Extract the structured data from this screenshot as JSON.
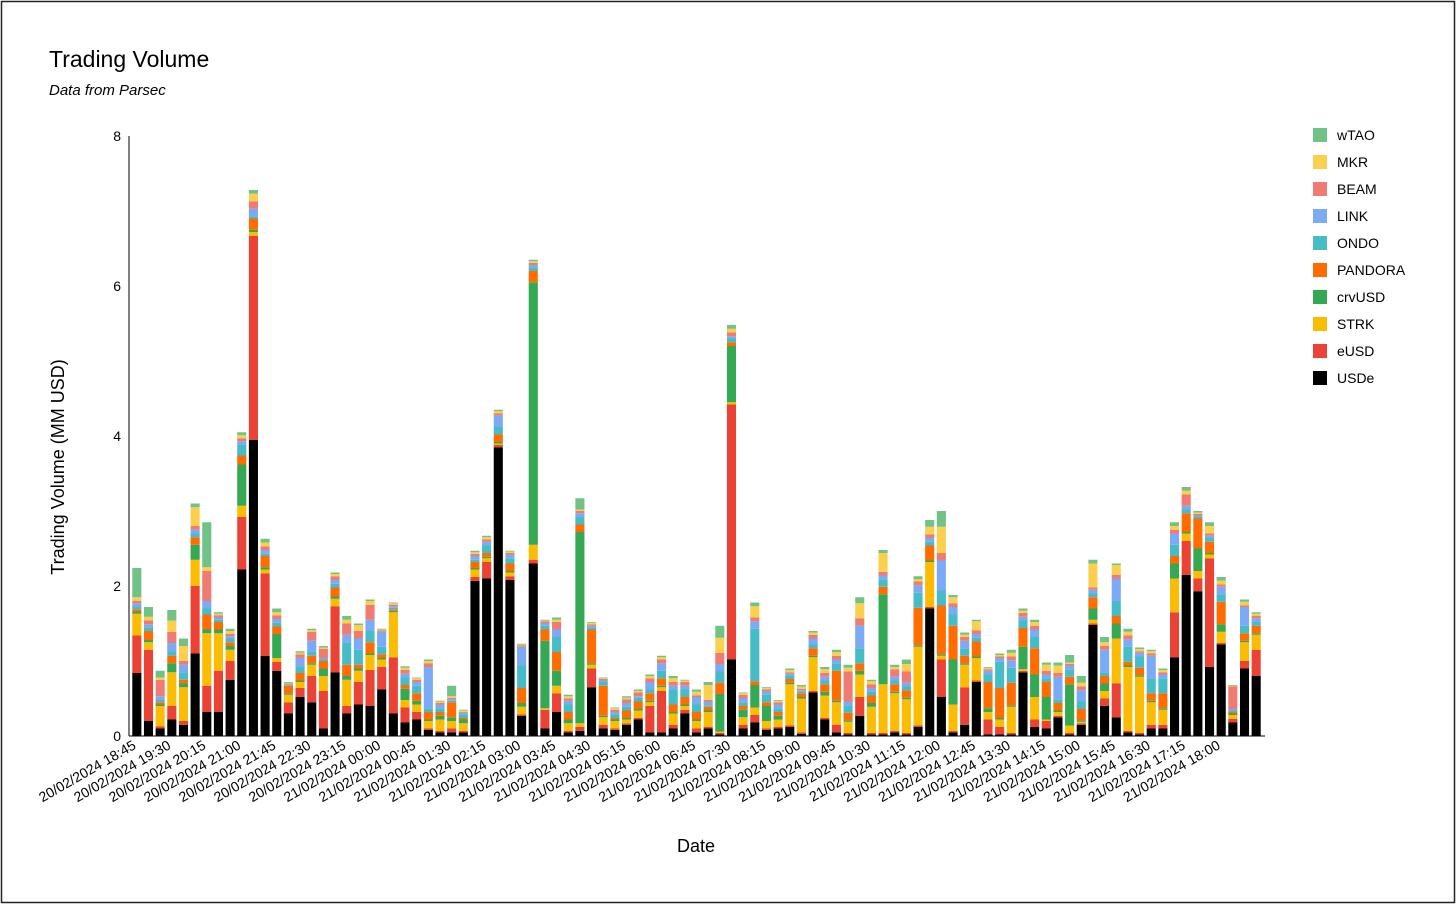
{
  "chart_data": {
    "type": "stacked_bar",
    "title": "Trading Volume",
    "subtitle": "Data from Parsec",
    "x_label": "Date",
    "y_label": "Trading Volume (MM USD)",
    "legend": "right",
    "ylim": [
      0,
      8
    ],
    "yticks": [
      0,
      2,
      4,
      6,
      8
    ],
    "categories": [
      "20/02/2024 18:45",
      null,
      null,
      "20/02/2024 19:30",
      null,
      null,
      "20/02/2024 20:15",
      null,
      null,
      "20/02/2024 21:00",
      null,
      null,
      "20/02/2024 21:45",
      null,
      null,
      "20/02/2024 22:30",
      null,
      null,
      "20/02/2024 23:15",
      null,
      null,
      "21/02/2024 00:00",
      null,
      null,
      "21/02/2024 00:45",
      null,
      null,
      "21/02/2024 01:30",
      null,
      null,
      "21/02/2024 02:15",
      null,
      null,
      "21/02/2024 03:00",
      null,
      null,
      "21/02/2024 03:45",
      null,
      null,
      "21/02/2024 04:30",
      null,
      null,
      "21/02/2024 05:15",
      null,
      null,
      "21/02/2024 06:00",
      null,
      null,
      "21/02/2024 06:45",
      null,
      null,
      "21/02/2024 07:30",
      null,
      null,
      "21/02/2024 08:15",
      null,
      null,
      "21/02/2024 09:00",
      null,
      null,
      "21/02/2024 09:45",
      null,
      null,
      "21/02/2024 10:30",
      null,
      null,
      "21/02/2024 11:15",
      null,
      null,
      "21/02/2024 12:00",
      null,
      null,
      "21/02/2024 12:45",
      null,
      null,
      "21/02/2024 13:30",
      null,
      null,
      "21/02/2024 14:15",
      null,
      null,
      "21/02/2024 15:00",
      null,
      null,
      "21/02/2024 15:45",
      null,
      null,
      "21/02/2024 16:30",
      null,
      null,
      "21/02/2024 17:15",
      null,
      null,
      "21/02/2024 18:00",
      null,
      null,
      null
    ],
    "series": [
      {
        "name": "USDe",
        "color": "#000000",
        "values": [
          0.84,
          0.2,
          0.1,
          0.22,
          0.15,
          1.1,
          0.32,
          0.32,
          0.75,
          2.22,
          3.95,
          1.07,
          0.87,
          0.3,
          0.52,
          0.45,
          0.1,
          0.85,
          0.3,
          0.42,
          0.4,
          0.62,
          0.3,
          0.18,
          0.22,
          0.08,
          0.05,
          0.05,
          0.05,
          2.07,
          2.1,
          3.85,
          2.08,
          0.27,
          2.3,
          0.1,
          0.32,
          0.05,
          0.07,
          0.65,
          0.1,
          0.08,
          0.15,
          0.22,
          0.05,
          0.05,
          0.1,
          0.3,
          0.05,
          0.1,
          0.02,
          1.02,
          0.1,
          0.18,
          0.08,
          0.1,
          0.12,
          0.03,
          0.58,
          0.22,
          0.05,
          0.02,
          0.27,
          0.02,
          0.02,
          0.05,
          0.02,
          0.12,
          1.7,
          0.52,
          0.05,
          0.15,
          0.72,
          0.02,
          0.02,
          0.02,
          0.85,
          0.12,
          0.1,
          0.25,
          0.02,
          0.15,
          1.48,
          0.4,
          0.25,
          0.05,
          0.02,
          0.1,
          0.1,
          1.05,
          2.15,
          1.93,
          0.92,
          1.22,
          0.18,
          0.9,
          0.8
        ]
      },
      {
        "name": "eUSD",
        "color": "#ea4335",
        "values": [
          0.5,
          0.95,
          0.03,
          0.18,
          0.05,
          0.9,
          0.35,
          0.55,
          0.25,
          0.7,
          2.72,
          1.1,
          0.12,
          0.15,
          0.12,
          0.35,
          0.5,
          0.88,
          0.1,
          0.3,
          0.48,
          0.3,
          0.75,
          0.2,
          0.1,
          0.02,
          0.02,
          0.05,
          0.02,
          0.05,
          0.22,
          0.03,
          0.05,
          0.02,
          0.05,
          0.25,
          0.25,
          0.02,
          0.05,
          0.25,
          0.05,
          0.02,
          0.02,
          0.02,
          0.35,
          0.55,
          0.05,
          0.05,
          0.05,
          0.02,
          0.02,
          3.4,
          0.05,
          0.1,
          0.02,
          0.02,
          0.02,
          0.02,
          0.02,
          0.02,
          0.1,
          0.02,
          0.25,
          0.02,
          0.02,
          0.02,
          0.02,
          0.02,
          0.02,
          0.5,
          0.02,
          0.5,
          0.02,
          0.2,
          0.1,
          0.02,
          0.02,
          0.1,
          0.1,
          0.02,
          0.02,
          0.02,
          0.02,
          0.1,
          0.45,
          0.02,
          0.02,
          0.05,
          0.05,
          0.6,
          0.45,
          0.17,
          1.45,
          0.02,
          0.05,
          0.1,
          0.35
        ]
      },
      {
        "name": "STRK",
        "color": "#fbbc04",
        "values": [
          0.29,
          0.1,
          0.27,
          0.45,
          0.45,
          0.35,
          0.7,
          0.5,
          0.15,
          0.15,
          0.05,
          0.05,
          0.05,
          0.1,
          0.08,
          0.15,
          0.2,
          0.1,
          0.35,
          0.15,
          0.2,
          0.1,
          0.6,
          0.1,
          0.1,
          0.1,
          0.15,
          0.1,
          0.1,
          0.1,
          0.05,
          0.02,
          0.05,
          0.1,
          0.2,
          0.02,
          0.1,
          0.1,
          0.05,
          0.05,
          0.1,
          0.1,
          0.05,
          0.1,
          0.05,
          0.05,
          0.15,
          0.05,
          0.1,
          0.2,
          0.02,
          0.03,
          0.1,
          0.1,
          0.1,
          0.1,
          0.55,
          0.45,
          0.45,
          0.3,
          0.3,
          0.15,
          0.3,
          0.35,
          0.65,
          0.5,
          0.45,
          1.05,
          0.6,
          0.05,
          0.35,
          0.3,
          0.3,
          0.1,
          0.1,
          0.35,
          0.02,
          0.3,
          0.02,
          0.05,
          0.1,
          0.02,
          0.05,
          0.1,
          0.6,
          0.85,
          0.75,
          0.3,
          0.2,
          0.45,
          0.1,
          0.1,
          0.05,
          0.15,
          0.05,
          0.25,
          0.2
        ]
      },
      {
        "name": "crvUSD",
        "color": "#34a853",
        "values": [
          0.03,
          0.03,
          0.02,
          0.12,
          0.05,
          0.2,
          0.05,
          0.05,
          0.05,
          0.55,
          0.03,
          0.03,
          0.32,
          0.02,
          0.02,
          0.02,
          0.1,
          0.03,
          0.05,
          0.03,
          0.02,
          0.02,
          0.02,
          0.15,
          0.05,
          0.02,
          0.05,
          0.05,
          0.05,
          0.02,
          0.02,
          0.02,
          0.02,
          0.05,
          3.5,
          0.9,
          0.2,
          0.05,
          2.55,
          0.02,
          0.02,
          0.02,
          0.02,
          0.02,
          0.02,
          0.02,
          0.02,
          0.02,
          0.02,
          0.02,
          0.5,
          0.75,
          0.1,
          0.3,
          0.2,
          0.05,
          0.02,
          0.02,
          0.02,
          0.05,
          0.02,
          0.02,
          0.05,
          0.05,
          1.2,
          0.02,
          0.02,
          0.02,
          0.02,
          0.02,
          0.6,
          0.02,
          0.02,
          0.05,
          0.02,
          0.02,
          0.3,
          0.3,
          0.3,
          0.02,
          0.55,
          0.02,
          0.15,
          0.1,
          0.2,
          0.02,
          0.02,
          0.02,
          0.02,
          0.2,
          0.02,
          0.3,
          0.02,
          0.1,
          0.02,
          0.02,
          0.02
        ]
      },
      {
        "name": "PANDORA",
        "color": "#ff6d01",
        "values": [
          0.03,
          0.12,
          0.03,
          0.1,
          0.05,
          0.1,
          0.2,
          0.1,
          0.05,
          0.12,
          0.15,
          0.15,
          0.1,
          0.1,
          0.1,
          0.1,
          0.1,
          0.12,
          0.15,
          0.05,
          0.15,
          0.05,
          0.02,
          0.05,
          0.1,
          0.1,
          0.05,
          0.2,
          0.02,
          0.08,
          0.05,
          0.1,
          0.1,
          0.2,
          0.15,
          0.15,
          0.25,
          0.1,
          0.1,
          0.45,
          0.4,
          0.02,
          0.1,
          0.1,
          0.1,
          0.1,
          0.1,
          0.1,
          0.1,
          0.05,
          0.15,
          0.05,
          0.05,
          0.05,
          0.05,
          0.05,
          0.05,
          0.05,
          0.1,
          0.1,
          0.4,
          0.1,
          0.1,
          0.1,
          0.1,
          0.1,
          0.1,
          0.5,
          0.2,
          0.65,
          0.45,
          0.1,
          0.2,
          0.35,
          0.4,
          0.3,
          0.25,
          0.35,
          0.2,
          0.1,
          0.1,
          0.15,
          0.15,
          0.1,
          0.1,
          0.05,
          0.1,
          0.1,
          0.2,
          0.1,
          0.25,
          0.4,
          0.15,
          0.3,
          0.02,
          0.1,
          0.1
        ]
      },
      {
        "name": "ONDO",
        "color": "#46bdc6",
        "values": [
          0.03,
          0.05,
          0.03,
          0.05,
          0.1,
          0.05,
          0.08,
          0.03,
          0.05,
          0.15,
          0.03,
          0.03,
          0.05,
          0.01,
          0.08,
          0.05,
          0.02,
          0.05,
          0.3,
          0.2,
          0.15,
          0.1,
          0.02,
          0.1,
          0.1,
          0.05,
          0.05,
          0.02,
          0.05,
          0.03,
          0.1,
          0.1,
          0.07,
          0.3,
          0.05,
          0.05,
          0.2,
          0.1,
          0.1,
          0.03,
          0.05,
          0.05,
          0.05,
          0.05,
          0.05,
          0.1,
          0.2,
          0.1,
          0.1,
          0.02,
          0.15,
          0.05,
          0.05,
          0.7,
          0.1,
          0.05,
          0.05,
          0.02,
          0.05,
          0.05,
          0.1,
          0.1,
          0.2,
          0.05,
          0.1,
          0.05,
          0.05,
          0.2,
          0.05,
          0.2,
          0.15,
          0.1,
          0.05,
          0.1,
          0.35,
          0.2,
          0.1,
          0.15,
          0.05,
          0.05,
          0.1,
          0.1,
          0.05,
          0.05,
          0.2,
          0.2,
          0.15,
          0.2,
          0.2,
          0.15,
          0.05,
          0.02,
          0.05,
          0.1,
          0.02,
          0.1,
          0.05
        ]
      },
      {
        "name": "LINK",
        "color": "#7baaf7",
        "values": [
          0.05,
          0.04,
          0.05,
          0.12,
          0.1,
          0.05,
          0.1,
          0.03,
          0.03,
          0.04,
          0.1,
          0.05,
          0.05,
          0.01,
          0.12,
          0.15,
          0.02,
          0.05,
          0.1,
          0.15,
          0.15,
          0.2,
          0.02,
          0.05,
          0.05,
          0.55,
          0.05,
          0.02,
          0.02,
          0.05,
          0.05,
          0.15,
          0.05,
          0.25,
          0.03,
          0.03,
          0.1,
          0.05,
          0.05,
          0.02,
          0.02,
          0.03,
          0.05,
          0.02,
          0.1,
          0.1,
          0.05,
          0.05,
          0.1,
          0.05,
          0.1,
          0.03,
          0.05,
          0.1,
          0.05,
          0.05,
          0.02,
          0.02,
          0.08,
          0.05,
          0.05,
          0.05,
          0.3,
          0.05,
          0.05,
          0.05,
          0.05,
          0.1,
          0.05,
          0.4,
          0.1,
          0.1,
          0.05,
          0.05,
          0.05,
          0.1,
          0.05,
          0.1,
          0.05,
          0.3,
          0.05,
          0.15,
          0.05,
          0.3,
          0.3,
          0.1,
          0.05,
          0.3,
          0.05,
          0.15,
          0.05,
          0.02,
          0.03,
          0.1,
          0.02,
          0.25,
          0.05
        ]
      },
      {
        "name": "BEAM",
        "color": "#f07b72",
        "values": [
          0.03,
          0.05,
          0.22,
          0.15,
          0.05,
          0.05,
          0.4,
          0.03,
          0.03,
          0.04,
          0.1,
          0.05,
          0.05,
          0.01,
          0.05,
          0.12,
          0.12,
          0.05,
          0.15,
          0.1,
          0.2,
          0.02,
          0.02,
          0.05,
          0.03,
          0.05,
          0.02,
          0.02,
          0.01,
          0.03,
          0.03,
          0.03,
          0.02,
          0.02,
          0.03,
          0.03,
          0.1,
          0.03,
          0.03,
          0.02,
          0.02,
          0.03,
          0.05,
          0.05,
          0.05,
          0.05,
          0.05,
          0.05,
          0.02,
          0.02,
          0.15,
          0.05,
          0.05,
          0.05,
          0.02,
          0.03,
          0.02,
          0.02,
          0.05,
          0.05,
          0.05,
          0.4,
          0.1,
          0.05,
          0.05,
          0.1,
          0.15,
          0.05,
          0.05,
          0.1,
          0.05,
          0.05,
          0.05,
          0.02,
          0.02,
          0.05,
          0.05,
          0.05,
          0.05,
          0.05,
          0.02,
          0.05,
          0.03,
          0.05,
          0.05,
          0.05,
          0.02,
          0.03,
          0.03,
          0.05,
          0.15,
          0.02,
          0.03,
          0.03,
          0.3,
          0.02,
          0.03
        ]
      },
      {
        "name": "MKR",
        "color": "#fcd04f",
        "values": [
          0.05,
          0.05,
          0.03,
          0.15,
          0.2,
          0.25,
          0.05,
          0.02,
          0.04,
          0.04,
          0.1,
          0.05,
          0.04,
          0.01,
          0.02,
          0.02,
          0.02,
          0.03,
          0.05,
          0.08,
          0.05,
          0.01,
          0.02,
          0.03,
          0.02,
          0.03,
          0.02,
          0.02,
          0.02,
          0.02,
          0.03,
          0.03,
          0.02,
          0.01,
          0.02,
          0.01,
          0.03,
          0.03,
          0.02,
          0.02,
          0.01,
          0.02,
          0.02,
          0.02,
          0.03,
          0.03,
          0.05,
          0.02,
          0.05,
          0.2,
          0.2,
          0.05,
          0.02,
          0.15,
          0.02,
          0.02,
          0.03,
          0.03,
          0.03,
          0.05,
          0.05,
          0.05,
          0.2,
          0.04,
          0.25,
          0.03,
          0.1,
          0.03,
          0.1,
          0.35,
          0.08,
          0.03,
          0.12,
          0.02,
          0.02,
          0.05,
          0.03,
          0.05,
          0.08,
          0.1,
          0.02,
          0.05,
          0.32,
          0.05,
          0.13,
          0.05,
          0.03,
          0.03,
          0.03,
          0.05,
          0.05,
          0.02,
          0.1,
          0.05,
          0.01,
          0.05,
          0.03
        ]
      },
      {
        "name": "wTAO",
        "color": "#71c287",
        "values": [
          0.39,
          0.13,
          0.09,
          0.14,
          0.1,
          0.05,
          0.6,
          0.02,
          0.03,
          0.04,
          0.05,
          0.05,
          0.05,
          0.01,
          0.02,
          0.02,
          0.02,
          0.02,
          0.05,
          0.02,
          0.02,
          0.01,
          0.01,
          0.02,
          0.01,
          0.02,
          0.01,
          0.14,
          0.01,
          0.02,
          0.02,
          0.02,
          0.01,
          0.01,
          0.02,
          0.01,
          0.03,
          0.02,
          0.15,
          0.01,
          0.01,
          0.01,
          0.02,
          0.02,
          0.02,
          0.02,
          0.03,
          0.01,
          0.03,
          0.04,
          0.16,
          0.05,
          0.01,
          0.05,
          0.01,
          0.01,
          0.02,
          0.02,
          0.02,
          0.03,
          0.03,
          0.04,
          0.08,
          0.02,
          0.04,
          0.03,
          0.06,
          0.04,
          0.09,
          0.21,
          0.03,
          0.03,
          0.02,
          0.01,
          0.02,
          0.04,
          0.03,
          0.03,
          0.03,
          0.04,
          0.1,
          0.09,
          0.05,
          0.07,
          0.02,
          0.04,
          0.02,
          0.02,
          0.02,
          0.05,
          0.05,
          0.02,
          0.05,
          0.05,
          0.01,
          0.03,
          0.02
        ]
      }
    ]
  }
}
